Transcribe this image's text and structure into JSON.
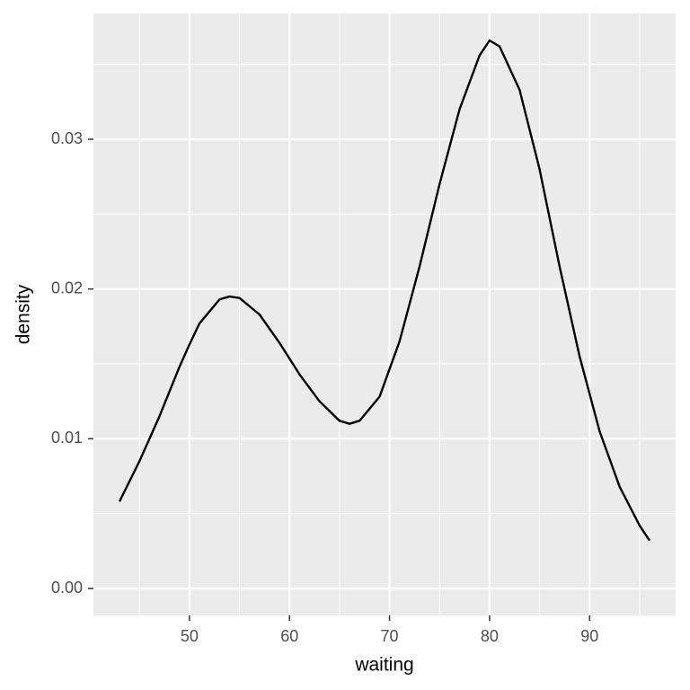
{
  "chart_data": {
    "type": "line",
    "x_label": "waiting",
    "y_label": "density",
    "x": [
      43,
      45,
      47,
      49,
      50,
      51,
      53,
      54,
      55,
      57,
      59,
      61,
      63,
      65,
      66,
      67,
      69,
      71,
      73,
      75,
      77,
      79,
      80,
      81,
      83,
      85,
      87,
      89,
      91,
      93,
      95,
      96
    ],
    "series": [
      {
        "color": "#000000",
        "values": [
          0.0058,
          0.0085,
          0.0115,
          0.0148,
          0.0163,
          0.0177,
          0.0193,
          0.0195,
          0.0194,
          0.0183,
          0.0164,
          0.0143,
          0.0125,
          0.0112,
          0.011,
          0.0112,
          0.0128,
          0.0165,
          0.0215,
          0.027,
          0.032,
          0.0356,
          0.0366,
          0.0362,
          0.0333,
          0.028,
          0.0215,
          0.0155,
          0.0105,
          0.0068,
          0.0042,
          0.0032
        ]
      }
    ],
    "xlim": [
      40.4,
      98.6
    ],
    "ylim": [
      -0.0018,
      0.0384
    ],
    "xticks": [
      50,
      60,
      70,
      80,
      90
    ],
    "yticks": [
      {
        "value": 0,
        "label": "0.00"
      },
      0.01,
      0.02,
      0.03
    ],
    "x_minor_grid": [
      45,
      55,
      65,
      75,
      85,
      95
    ],
    "y_minor_grid": [
      0.005,
      0.015,
      0.025,
      0.035
    ],
    "grid": true
  }
}
